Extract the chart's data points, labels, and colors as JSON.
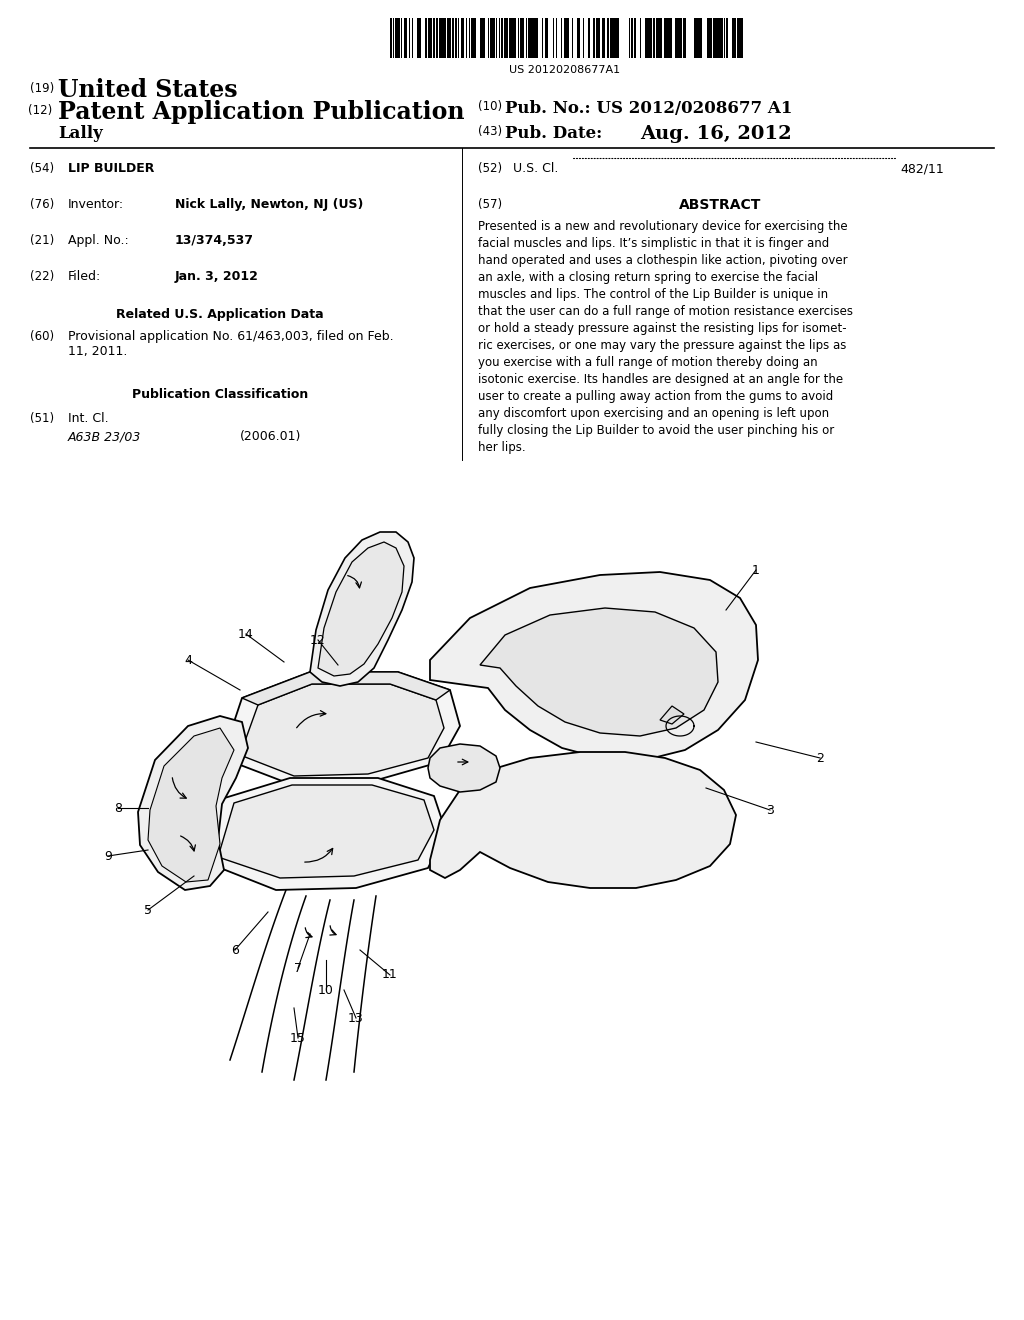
{
  "background_color": "#ffffff",
  "barcode_text": "US 20120208677A1",
  "header": {
    "line1_num": "(19)",
    "line1_text": "United States",
    "line2_num": "(12)",
    "line2_text": "Patent Application Publication",
    "line3_left": "Lally",
    "right_col1_num": "(10)",
    "right_col1_label": "Pub. No.: US 2012/0208677 A1",
    "right_col2_num": "(43)",
    "right_col2_label": "Pub. Date:",
    "right_col2_val": "Aug. 16, 2012"
  },
  "left_col": {
    "title_num": "(54)",
    "title_text": "LIP BUILDER",
    "inventor_num": "(76)",
    "inventor_label": "Inventor:",
    "inventor_val": "Nick Lally, Newton, NJ (US)",
    "appl_num": "(21)",
    "appl_label": "Appl. No.:",
    "appl_val": "13/374,537",
    "filed_num": "(22)",
    "filed_label": "Filed:",
    "filed_val": "Jan. 3, 2012",
    "related_header": "Related U.S. Application Data",
    "related_num": "(60)",
    "related_text1": "Provisional application No. 61/463,003, filed on Feb.",
    "related_text2": "11, 2011.",
    "pub_class_header": "Publication Classification",
    "intcl_num": "(51)",
    "intcl_label": "Int. Cl.",
    "intcl_code": "A63B 23/03",
    "intcl_year": "(2006.01)",
    "uscl_num": "(52)",
    "uscl_label": "U.S. Cl.",
    "uscl_dots": "............................................",
    "uscl_val": "482/11"
  },
  "right_col": {
    "abstract_num": "(57)",
    "abstract_header": "ABSTRACT",
    "abstract_lines": [
      "Presented is a new and revolutionary device for exercising the",
      "facial muscles and lips. It’s simplistic in that it is finger and",
      "hand operated and uses a clothespin like action, pivoting over",
      "an axle, with a closing return spring to exercise the facial",
      "muscles and lips. The control of the Lip Builder is unique in",
      "that the user can do a full range of motion resistance exercises",
      "or hold a steady pressure against the resisting lips for isomet-",
      "ric exercises, or one may vary the pressure against the lips as",
      "you exercise with a full range of motion thereby doing an",
      "isotonic exercise. Its handles are designed at an angle for the",
      "user to create a pulling away action from the gums to avoid",
      "any discomfort upon exercising and an opening is left upon",
      "fully closing the Lip Builder to avoid the user pinching his or",
      "her lips."
    ]
  }
}
